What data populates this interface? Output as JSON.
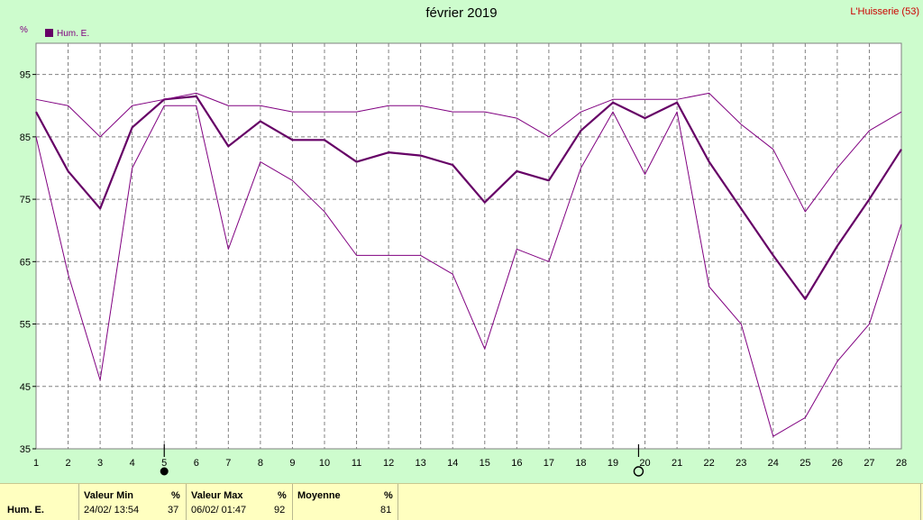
{
  "header": {
    "title": "février 2019",
    "station": "L'Huisserie (53)",
    "unit": "%"
  },
  "legend": [
    {
      "label": "Hum. E.",
      "color": "#660066"
    }
  ],
  "colors": {
    "background": "#cdfccd",
    "series": "#800080",
    "mean": "#660066",
    "grid": "#808080",
    "stats_bg": "#ffffc0"
  },
  "markers": [
    {
      "day": 5,
      "symbol": "filled-circle"
    },
    {
      "day": 19.8,
      "symbol": "open-circle"
    }
  ],
  "chart_data": {
    "type": "line",
    "title": "février 2019",
    "ylabel": "%",
    "x": [
      1,
      2,
      3,
      4,
      5,
      6,
      7,
      8,
      9,
      10,
      11,
      12,
      13,
      14,
      15,
      16,
      17,
      18,
      19,
      20,
      21,
      22,
      23,
      24,
      25,
      26,
      27,
      28
    ],
    "xlim": [
      1,
      28
    ],
    "ylim": [
      35,
      100
    ],
    "yticks": [
      35,
      45,
      55,
      65,
      75,
      85,
      95
    ],
    "grid": true,
    "legend_position": "top-left",
    "series": [
      {
        "name": "Hum. E.",
        "role": "mean",
        "values": [
          89,
          79.5,
          73.5,
          86.5,
          91,
          91.5,
          83.5,
          87.5,
          84.5,
          84.5,
          81,
          82.5,
          82,
          80.5,
          74.5,
          79.5,
          78,
          86,
          90.5,
          88,
          90.5,
          81,
          73.5,
          66,
          59,
          67.5,
          75,
          83
        ]
      },
      {
        "role": "max",
        "values": [
          91,
          90,
          85,
          90,
          91,
          92,
          90,
          90,
          89,
          89,
          89,
          90,
          90,
          89,
          89,
          88,
          85,
          89,
          91,
          91,
          91,
          92,
          87,
          83,
          73,
          80,
          86,
          89
        ]
      },
      {
        "role": "min",
        "values": [
          85,
          63,
          46,
          80,
          90,
          90,
          67,
          81,
          78,
          73,
          66,
          66,
          66,
          63,
          51,
          67,
          65,
          80,
          89,
          79,
          89,
          61,
          55,
          37,
          40,
          49,
          55,
          71
        ]
      }
    ]
  },
  "stats": {
    "row_label": "Hum. E.",
    "min": {
      "header": "Valeur Min",
      "unit": "%",
      "when": "24/02/  13:54",
      "value": "37"
    },
    "max": {
      "header": "Valeur Max",
      "unit": "%",
      "when": "06/02/  01:47",
      "value": "92"
    },
    "mean": {
      "header": "Moyenne",
      "unit": "%",
      "value": "81"
    }
  }
}
